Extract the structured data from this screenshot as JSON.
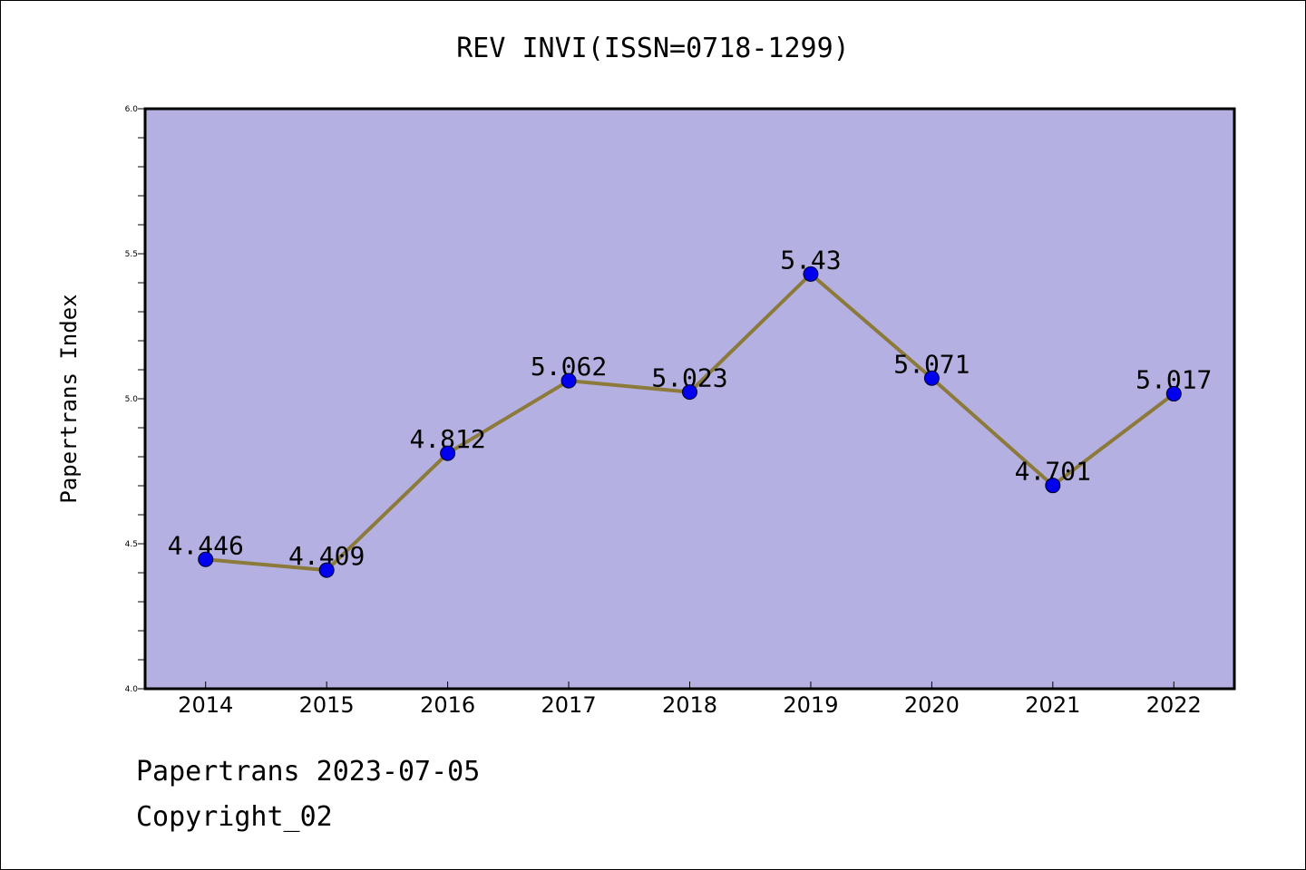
{
  "footer": {
    "line1": "Papertrans 2023-07-05",
    "line2": "Copyright_02"
  },
  "colors": {
    "plot_background": "#b5b0e2",
    "line": "#8c7a3a",
    "marker": "#0000ee",
    "axis": "#000000"
  },
  "chart_data": {
    "type": "line",
    "title": "REV INVI(ISSN=0718-1299)",
    "xlabel": "",
    "ylabel": "Papertrans Index",
    "x": [
      "2014",
      "2015",
      "2016",
      "2017",
      "2018",
      "2019",
      "2020",
      "2021",
      "2022"
    ],
    "series": [
      {
        "values": [
          4.446,
          4.409,
          4.812,
          5.062,
          5.023,
          5.43,
          5.071,
          4.701,
          5.017
        ],
        "labels": [
          "4.446",
          "4.409",
          "4.812",
          "5.062",
          "5.023",
          "5.43",
          "5.071",
          "4.701",
          "5.017"
        ]
      }
    ],
    "ylim": [
      4.0,
      6.0
    ],
    "yticks": [
      "4.0",
      "4.5",
      "5.0",
      "5.5",
      "6.0"
    ],
    "grid": false,
    "legend": "none"
  }
}
